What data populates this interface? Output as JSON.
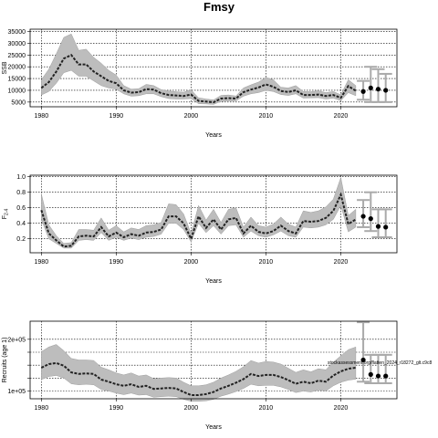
{
  "title": "Fmsy",
  "chart_data": [
    {
      "type": "line",
      "xlabel": "Years",
      "ylabel": "SSB",
      "xlim": [
        1978.5,
        2027.5
      ],
      "ylim": [
        3000,
        36000
      ],
      "xticks": [
        1980,
        1990,
        2000,
        2010,
        2020
      ],
      "yticks": [
        5000,
        10000,
        15000,
        20000,
        25000,
        30000,
        35000
      ],
      "ytick_labels": [
        "5000",
        "10000",
        "15000",
        "20000",
        "25000",
        "30000",
        "35000"
      ],
      "grid": true,
      "x": [
        1980,
        1981,
        1982,
        1983,
        1984,
        1985,
        1986,
        1987,
        1988,
        1989,
        1990,
        1991,
        1992,
        1993,
        1994,
        1995,
        1996,
        1997,
        1998,
        1999,
        2000,
        2001,
        2002,
        2003,
        2004,
        2005,
        2006,
        2007,
        2008,
        2009,
        2010,
        2011,
        2012,
        2013,
        2014,
        2015,
        2016,
        2017,
        2018,
        2019,
        2020,
        2021,
        2022
      ],
      "median": [
        11000,
        13500,
        18000,
        23500,
        25000,
        21000,
        21000,
        18000,
        16000,
        14000,
        13000,
        10000,
        9000,
        9200,
        10500,
        10300,
        8800,
        8000,
        7800,
        7600,
        8200,
        5500,
        5200,
        4900,
        6500,
        6700,
        6500,
        9200,
        10300,
        11200,
        12500,
        11500,
        9700,
        9300,
        10000,
        8000,
        8000,
        8200,
        7600,
        8000,
        6800,
        11800,
        9800
      ],
      "lower": [
        8000,
        9500,
        13000,
        17500,
        18500,
        16000,
        16000,
        14000,
        12000,
        11000,
        10500,
        8500,
        7500,
        7700,
        8500,
        8500,
        7300,
        6500,
        6300,
        6300,
        6500,
        4300,
        4200,
        4000,
        5300,
        5500,
        5500,
        7500,
        8500,
        9000,
        10000,
        9500,
        8200,
        7800,
        8500,
        6700,
        6800,
        6900,
        6300,
        6700,
        5600,
        9000,
        7700
      ],
      "upper": [
        14500,
        19000,
        25500,
        32500,
        34000,
        27000,
        27500,
        24000,
        21500,
        18500,
        16500,
        12000,
        10500,
        10700,
        12500,
        12000,
        10300,
        9700,
        9400,
        9200,
        10200,
        6800,
        6300,
        5900,
        7800,
        8000,
        7600,
        11000,
        12300,
        13500,
        15500,
        14500,
        11300,
        11000,
        12000,
        9500,
        9400,
        9800,
        9000,
        9500,
        8100,
        14500,
        12000
      ],
      "projection": {
        "x": [
          2023,
          2024,
          2025,
          2026
        ],
        "median": [
          9500,
          11000,
          10500,
          10000
        ],
        "lower": [
          6000,
          5000,
          5000,
          5000
        ],
        "upper": [
          14000,
          20000,
          19000,
          17000
        ]
      }
    },
    {
      "type": "line",
      "xlabel": "Years",
      "ylabel": "F2-4",
      "ylabel_main": "F",
      "ylabel_sub": "2-4",
      "xlim": [
        1978.5,
        2027.5
      ],
      "ylim": [
        0.02,
        1.02
      ],
      "xticks": [
        1980,
        1990,
        2000,
        2010,
        2020
      ],
      "yticks": [
        0.2,
        0.4,
        0.6,
        0.8,
        1.0
      ],
      "ytick_labels": [
        "0.2",
        "0.4",
        "0.6",
        "0.8",
        "1.0"
      ],
      "grid": true,
      "x": [
        1980,
        1981,
        1982,
        1983,
        1984,
        1985,
        1986,
        1987,
        1988,
        1989,
        1990,
        1991,
        1992,
        1993,
        1994,
        1995,
        1996,
        1997,
        1998,
        1999,
        2000,
        2001,
        2002,
        2003,
        2004,
        2005,
        2006,
        2007,
        2008,
        2009,
        2010,
        2011,
        2012,
        2013,
        2014,
        2015,
        2016,
        2017,
        2018,
        2019,
        2020,
        2021,
        2022
      ],
      "median": [
        0.57,
        0.27,
        0.18,
        0.1,
        0.11,
        0.23,
        0.24,
        0.23,
        0.35,
        0.23,
        0.28,
        0.22,
        0.26,
        0.24,
        0.28,
        0.29,
        0.32,
        0.49,
        0.49,
        0.4,
        0.2,
        0.49,
        0.34,
        0.45,
        0.32,
        0.45,
        0.47,
        0.27,
        0.37,
        0.29,
        0.27,
        0.3,
        0.37,
        0.3,
        0.27,
        0.43,
        0.42,
        0.43,
        0.47,
        0.56,
        0.77,
        0.39,
        0.45
      ],
      "lower": [
        0.45,
        0.2,
        0.14,
        0.08,
        0.08,
        0.18,
        0.19,
        0.18,
        0.28,
        0.18,
        0.22,
        0.18,
        0.21,
        0.19,
        0.22,
        0.23,
        0.26,
        0.4,
        0.4,
        0.32,
        0.16,
        0.4,
        0.28,
        0.37,
        0.26,
        0.37,
        0.38,
        0.22,
        0.3,
        0.24,
        0.22,
        0.25,
        0.3,
        0.24,
        0.22,
        0.35,
        0.34,
        0.35,
        0.38,
        0.45,
        0.63,
        0.29,
        0.35
      ],
      "upper": [
        0.78,
        0.38,
        0.24,
        0.14,
        0.15,
        0.32,
        0.32,
        0.31,
        0.47,
        0.31,
        0.37,
        0.29,
        0.34,
        0.32,
        0.37,
        0.38,
        0.41,
        0.65,
        0.64,
        0.52,
        0.27,
        0.63,
        0.44,
        0.58,
        0.41,
        0.58,
        0.6,
        0.35,
        0.48,
        0.37,
        0.35,
        0.39,
        0.48,
        0.39,
        0.35,
        0.56,
        0.54,
        0.56,
        0.61,
        0.71,
        0.99,
        0.5,
        0.58
      ],
      "projection": {
        "x": [
          2023,
          2024,
          2025,
          2026
        ],
        "median": [
          0.49,
          0.46,
          0.36,
          0.35
        ],
        "lower": [
          0.35,
          0.3,
          0.22,
          0.22
        ],
        "upper": [
          0.7,
          0.8,
          0.58,
          0.58
        ]
      }
    },
    {
      "type": "line",
      "xlabel": "Years",
      "ylabel": "Recruits (age 1)",
      "xlim": [
        1978.5,
        2027.5
      ],
      "ylim": [
        85000,
        235000
      ],
      "xticks": [
        1980,
        1990,
        2000,
        2010,
        2020
      ],
      "yticks": [
        100000,
        125000,
        150000,
        175000,
        200000
      ],
      "ytick_labels": [
        "1e+05",
        "",
        "",
        "",
        "2e+05"
      ],
      "grid": true,
      "x": [
        1980,
        1981,
        1982,
        1983,
        1984,
        1985,
        1986,
        1987,
        1988,
        1989,
        1990,
        1991,
        1992,
        1993,
        1994,
        1995,
        1996,
        1997,
        1998,
        1999,
        2000,
        2001,
        2002,
        2003,
        2004,
        2005,
        2006,
        2007,
        2008,
        2009,
        2010,
        2011,
        2012,
        2013,
        2014,
        2015,
        2016,
        2017,
        2018,
        2019,
        2020,
        2021,
        2022
      ],
      "median": [
        145000,
        152000,
        154000,
        149000,
        136000,
        133000,
        134000,
        133000,
        122000,
        118000,
        113000,
        110000,
        113000,
        108000,
        110000,
        104000,
        105000,
        106000,
        105000,
        98000,
        92000,
        92000,
        94000,
        98000,
        105000,
        110000,
        116000,
        123000,
        133000,
        129000,
        131000,
        131000,
        127000,
        121000,
        114000,
        118000,
        115000,
        120000,
        118000,
        130000,
        138000,
        143000,
        145000
      ],
      "lower": [
        122000,
        128000,
        130000,
        125000,
        114000,
        112000,
        113000,
        112000,
        103000,
        100000,
        96000,
        93000,
        96000,
        92000,
        93000,
        88000,
        89000,
        90000,
        89000,
        84000,
        80000,
        80000,
        81000,
        84000,
        90000,
        94000,
        99000,
        105000,
        113000,
        110000,
        111000,
        111000,
        108000,
        103000,
        97000,
        100000,
        98000,
        102000,
        100000,
        110000,
        117000,
        121000,
        123000
      ],
      "upper": [
        176000,
        185000,
        190000,
        178000,
        163000,
        160000,
        160000,
        159000,
        146000,
        141000,
        135000,
        131000,
        135000,
        129000,
        131000,
        124000,
        125000,
        126000,
        125000,
        117000,
        110000,
        110000,
        112000,
        117000,
        125000,
        131000,
        138000,
        147000,
        159000,
        154000,
        157000,
        156000,
        152000,
        144000,
        136000,
        141000,
        137000,
        143000,
        141000,
        156000,
        168000,
        180000,
        185000
      ],
      "projection": {
        "x": [
          2023,
          2024,
          2025,
          2026
        ],
        "median": [
          160000,
          132000,
          129000,
          129000
        ],
        "lower": [
          118000,
          115000,
          115000,
          115000
        ],
        "upper": [
          233000,
          170000,
          170000,
          170000
        ]
      },
      "annotation": "stockassessment.org/flatten_2024_r18272_glt.c9c8"
    }
  ]
}
